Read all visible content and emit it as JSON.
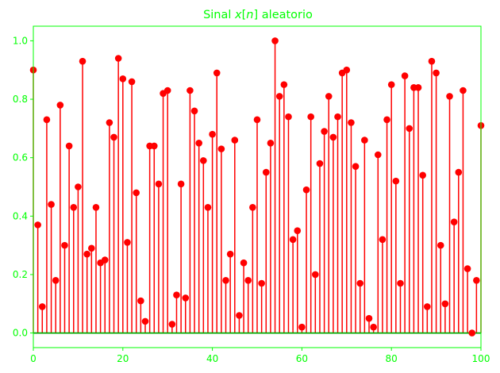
{
  "chart_data": {
    "type": "stem",
    "title_prefix": "Sinal ",
    "title_var": "x",
    "title_bracket_open": "[",
    "title_index": "n",
    "title_bracket_close": "]",
    "title_suffix": " aleatorio",
    "xlim": [
      0,
      100
    ],
    "ylim": [
      -0.05,
      1.05
    ],
    "xticks": [
      0,
      20,
      40,
      60,
      80,
      100
    ],
    "yticks": [
      0.0,
      0.2,
      0.4,
      0.6,
      0.8,
      1.0
    ],
    "xtick_labels": [
      "0",
      "20",
      "40",
      "60",
      "80",
      "100"
    ],
    "ytick_labels": [
      "0.0",
      "0.2",
      "0.4",
      "0.6",
      "0.8",
      "1.0"
    ],
    "grid": false,
    "colors": {
      "stem": "#ff0000",
      "marker": "#ff0000",
      "baseline": "#00aa00",
      "axes": "#00ff00"
    },
    "values": [
      0.9,
      0.37,
      0.09,
      0.73,
      0.44,
      0.18,
      0.78,
      0.3,
      0.64,
      0.43,
      0.5,
      0.93,
      0.27,
      0.29,
      0.43,
      0.24,
      0.25,
      0.72,
      0.67,
      0.94,
      0.87,
      0.31,
      0.86,
      0.48,
      0.11,
      0.04,
      0.64,
      0.64,
      0.51,
      0.82,
      0.83,
      0.03,
      0.13,
      0.51,
      0.12,
      0.83,
      0.76,
      0.65,
      0.59,
      0.43,
      0.68,
      0.89,
      0.63,
      0.18,
      0.27,
      0.66,
      0.06,
      0.24,
      0.18,
      0.43,
      0.73,
      0.17,
      0.55,
      0.65,
      1.0,
      0.81,
      0.85,
      0.74,
      0.32,
      0.35,
      0.02,
      0.49,
      0.74,
      0.2,
      0.58,
      0.69,
      0.81,
      0.67,
      0.74,
      0.89,
      0.9,
      0.72,
      0.57,
      0.17,
      0.66,
      0.05,
      0.02,
      0.61,
      0.32,
      0.73,
      0.85,
      0.52,
      0.17,
      0.88,
      0.7,
      0.84,
      0.84,
      0.54,
      0.09,
      0.93,
      0.89,
      0.3,
      0.1,
      0.81,
      0.38,
      0.55,
      0.83,
      0.22,
      0.0,
      0.18,
      0.71
    ]
  }
}
